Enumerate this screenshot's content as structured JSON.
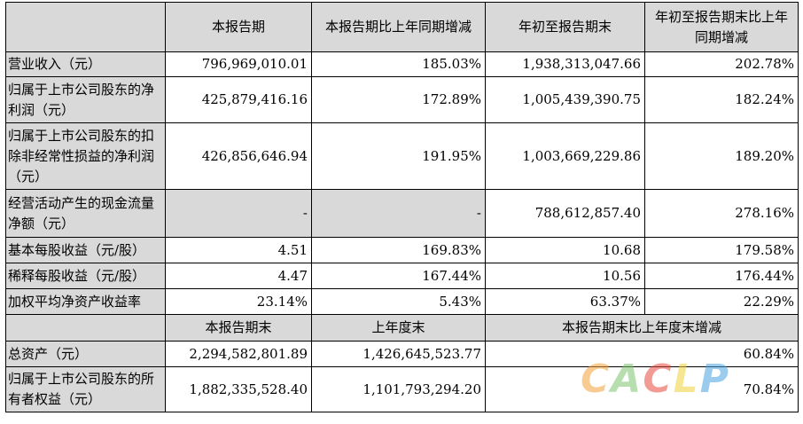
{
  "header": {
    "c1": "本报告期",
    "c2": "本报告期比上年同期增减",
    "c3": "年初至报告期末",
    "c4": "年初至报告期末比上年同期增减"
  },
  "rows": [
    {
      "label": "营业收入（元）",
      "v1": "796,969,010.01",
      "v2": "185.03%",
      "v3": "1,938,313,047.66",
      "v4": "202.78%"
    },
    {
      "label": "归属于上市公司股东的净利润（元）",
      "v1": "425,879,416.16",
      "v2": "172.89%",
      "v3": "1,005,439,390.75",
      "v4": "182.24%"
    },
    {
      "label": "归属于上市公司股东的扣除非经常性损益的净利润（元）",
      "v1": "426,856,646.94",
      "v2": "191.95%",
      "v3": "1,003,669,229.86",
      "v4": "189.20%"
    },
    {
      "label": "经营活动产生的现金流量净额（元）",
      "v1": "-",
      "v2": "-",
      "v3": "788,612,857.40",
      "v4": "278.16%"
    },
    {
      "label": "基本每股收益（元/股）",
      "v1": "4.51",
      "v2": "169.83%",
      "v3": "10.68",
      "v4": "179.58%"
    },
    {
      "label": "稀释每股收益（元/股）",
      "v1": "4.47",
      "v2": "167.44%",
      "v3": "10.56",
      "v4": "176.44%"
    },
    {
      "label": "加权平均净资产收益率",
      "v1": "23.14%",
      "v2": "5.43%",
      "v3": "63.37%",
      "v4": "22.29%"
    }
  ],
  "header2": {
    "c1": "本报告期末",
    "c2": "上年度末",
    "c3": "本报告期末比上年度末增减"
  },
  "rows2": [
    {
      "label": "总资产（元）",
      "v1": "2,294,582,801.89",
      "v2": "1,426,645,523.77",
      "v3": "60.84%"
    },
    {
      "label": "归属于上市公司股东的所有者权益（元）",
      "v1": "1,882,335,528.40",
      "v2": "1,101,793,294.20",
      "v3": "70.84%"
    }
  ],
  "watermark": {
    "letters": [
      "C",
      "A",
      "C",
      "L",
      "P"
    ],
    "colors": [
      "#f2a23a",
      "#7ec46f",
      "#e8483d",
      "#f0d33a",
      "#4aa3df"
    ]
  }
}
